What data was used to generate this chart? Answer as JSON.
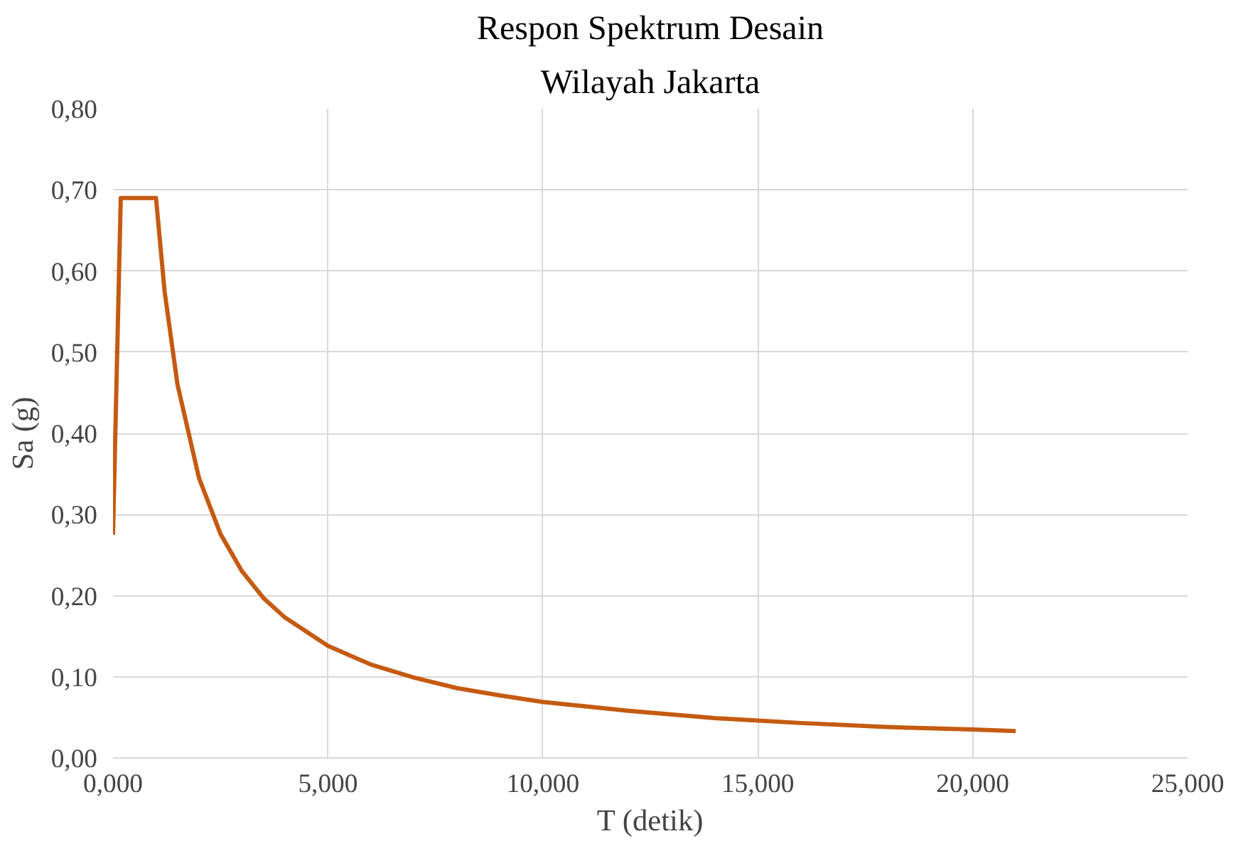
{
  "chart_data": {
    "type": "line",
    "title": "Respon Spektrum Desain",
    "subtitle": "Wilayah Jakarta",
    "xlabel": "T (detik)",
    "ylabel": "Sa (g)",
    "x": [
      0,
      0.18,
      1.0,
      1.2,
      1.5,
      2,
      2.5,
      3,
      3.5,
      4,
      5,
      6,
      7,
      8,
      9,
      10,
      12,
      14,
      16,
      18,
      20,
      21
    ],
    "series": [
      {
        "color": "#c55a11",
        "values": [
          0.275,
          0.69,
          0.69,
          0.575,
          0.46,
          0.345,
          0.276,
          0.23,
          0.197,
          0.173,
          0.138,
          0.115,
          0.099,
          0.086,
          0.077,
          0.069,
          0.058,
          0.049,
          0.043,
          0.038,
          0.035,
          0.033
        ]
      }
    ],
    "xlim": [
      0,
      25
    ],
    "ylim": [
      0,
      0.8
    ],
    "xticks": [
      {
        "value": 0,
        "label": "0,000"
      },
      {
        "value": 5,
        "label": "5,000"
      },
      {
        "value": 10,
        "label": "10,000"
      },
      {
        "value": 15,
        "label": "15,000"
      },
      {
        "value": 20,
        "label": "20,000"
      },
      {
        "value": 25,
        "label": "25,000"
      }
    ],
    "yticks": [
      {
        "value": 0,
        "label": "0,00"
      },
      {
        "value": 0.1,
        "label": "0,10"
      },
      {
        "value": 0.2,
        "label": "0,20"
      },
      {
        "value": 0.3,
        "label": "0,30"
      },
      {
        "value": 0.4,
        "label": "0,40"
      },
      {
        "value": 0.5,
        "label": "0,50"
      },
      {
        "value": 0.6,
        "label": "0,60"
      },
      {
        "value": 0.7,
        "label": "0,70"
      },
      {
        "value": 0.8,
        "label": "0,80"
      }
    ],
    "grid": true,
    "marker": "none",
    "line_style": "solid"
  }
}
